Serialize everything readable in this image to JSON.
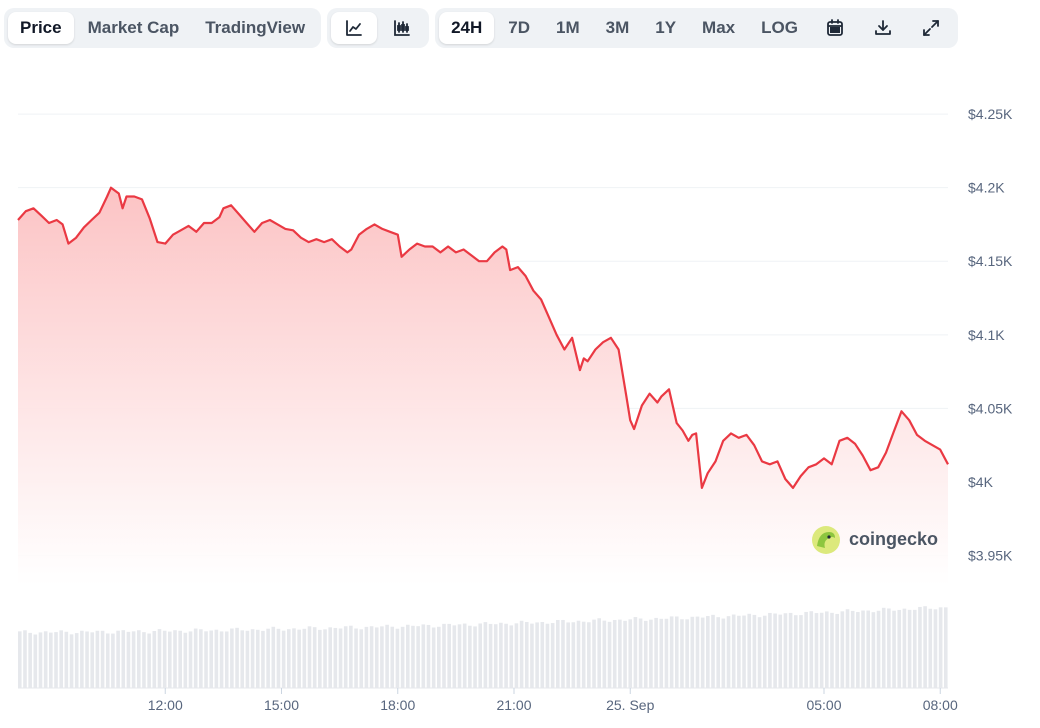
{
  "toolbar": {
    "view_tabs": [
      "Price",
      "Market Cap",
      "TradingView"
    ],
    "active_view": "Price",
    "chart_modes": [
      {
        "name": "line-chart-icon"
      },
      {
        "name": "candlestick-chart-icon"
      }
    ],
    "ranges": [
      "24H",
      "7D",
      "1M",
      "3M",
      "1Y",
      "Max",
      "LOG"
    ],
    "active_range": "24H",
    "actions": [
      {
        "name": "calendar-icon"
      },
      {
        "name": "download-icon"
      },
      {
        "name": "fullscreen-icon"
      }
    ]
  },
  "watermark": {
    "text": "coingecko"
  },
  "colors": {
    "line": "#ea3943",
    "fill_top": "#fcc3c4",
    "fill_bottom": "#ffffff",
    "volume": "#e6e8ec",
    "grid": "#eff2f5"
  },
  "chart_data": {
    "type": "area",
    "title": "",
    "xlabel": "",
    "ylabel": "",
    "ylim": [
      3930,
      4265
    ],
    "y_ticks": [
      3950,
      4000,
      4050,
      4100,
      4150,
      4200,
      4250
    ],
    "y_tick_labels": [
      "$3.95K",
      "$4K",
      "$4.05K",
      "$4.1K",
      "$4.15K",
      "$4.2K",
      "$4.25K"
    ],
    "xlim": [
      8.2,
      32.2
    ],
    "x_ticks": [
      12,
      15,
      18,
      21,
      24,
      29,
      32
    ],
    "x_tick_labels": [
      "12:00",
      "15:00",
      "18:00",
      "21:00",
      "25. Sep",
      "05:00",
      "08:00"
    ],
    "grid": true,
    "series": [
      {
        "points": [
          [
            8.2,
            4178
          ],
          [
            8.4,
            4184
          ],
          [
            8.6,
            4186
          ],
          [
            8.8,
            4181
          ],
          [
            9.0,
            4176
          ],
          [
            9.2,
            4178
          ],
          [
            9.35,
            4175
          ],
          [
            9.5,
            4162
          ],
          [
            9.7,
            4166
          ],
          [
            9.9,
            4173
          ],
          [
            10.1,
            4178
          ],
          [
            10.3,
            4183
          ],
          [
            10.5,
            4194
          ],
          [
            10.6,
            4200
          ],
          [
            10.8,
            4196
          ],
          [
            10.9,
            4186
          ],
          [
            11.0,
            4194
          ],
          [
            11.2,
            4194
          ],
          [
            11.4,
            4192
          ],
          [
            11.6,
            4179
          ],
          [
            11.8,
            4163
          ],
          [
            12.0,
            4162
          ],
          [
            12.2,
            4168
          ],
          [
            12.4,
            4171
          ],
          [
            12.6,
            4174
          ],
          [
            12.8,
            4170
          ],
          [
            13.0,
            4176
          ],
          [
            13.2,
            4176
          ],
          [
            13.4,
            4180
          ],
          [
            13.5,
            4186
          ],
          [
            13.7,
            4188
          ],
          [
            13.9,
            4182
          ],
          [
            14.1,
            4176
          ],
          [
            14.3,
            4170
          ],
          [
            14.5,
            4176
          ],
          [
            14.7,
            4178
          ],
          [
            14.9,
            4175
          ],
          [
            15.1,
            4172
          ],
          [
            15.3,
            4171
          ],
          [
            15.5,
            4166
          ],
          [
            15.7,
            4163
          ],
          [
            15.9,
            4165
          ],
          [
            16.1,
            4163
          ],
          [
            16.3,
            4165
          ],
          [
            16.5,
            4160
          ],
          [
            16.7,
            4156
          ],
          [
            16.8,
            4158
          ],
          [
            17.0,
            4168
          ],
          [
            17.2,
            4172
          ],
          [
            17.4,
            4175
          ],
          [
            17.6,
            4172
          ],
          [
            17.8,
            4170
          ],
          [
            18.0,
            4168
          ],
          [
            18.1,
            4153
          ],
          [
            18.3,
            4158
          ],
          [
            18.5,
            4162
          ],
          [
            18.7,
            4160
          ],
          [
            18.9,
            4160
          ],
          [
            19.1,
            4156
          ],
          [
            19.3,
            4160
          ],
          [
            19.5,
            4156
          ],
          [
            19.7,
            4158
          ],
          [
            19.9,
            4154
          ],
          [
            20.1,
            4150
          ],
          [
            20.3,
            4150
          ],
          [
            20.5,
            4156
          ],
          [
            20.7,
            4160
          ],
          [
            20.8,
            4158
          ],
          [
            20.9,
            4144
          ],
          [
            21.1,
            4146
          ],
          [
            21.3,
            4140
          ],
          [
            21.5,
            4130
          ],
          [
            21.7,
            4124
          ],
          [
            21.9,
            4112
          ],
          [
            22.1,
            4100
          ],
          [
            22.3,
            4090
          ],
          [
            22.5,
            4098
          ],
          [
            22.7,
            4076
          ],
          [
            22.8,
            4084
          ],
          [
            22.9,
            4082
          ],
          [
            23.1,
            4090
          ],
          [
            23.3,
            4095
          ],
          [
            23.5,
            4098
          ],
          [
            23.7,
            4090
          ],
          [
            23.9,
            4058
          ],
          [
            24.0,
            4042
          ],
          [
            24.1,
            4036
          ],
          [
            24.3,
            4052
          ],
          [
            24.5,
            4060
          ],
          [
            24.7,
            4054
          ],
          [
            24.8,
            4058
          ],
          [
            25.0,
            4063
          ],
          [
            25.2,
            4040
          ],
          [
            25.35,
            4035
          ],
          [
            25.5,
            4028
          ],
          [
            25.6,
            4032
          ],
          [
            25.7,
            4033
          ],
          [
            25.85,
            3996
          ],
          [
            26.0,
            4006
          ],
          [
            26.2,
            4014
          ],
          [
            26.4,
            4028
          ],
          [
            26.6,
            4033
          ],
          [
            26.8,
            4030
          ],
          [
            27.0,
            4032
          ],
          [
            27.2,
            4025
          ],
          [
            27.4,
            4014
          ],
          [
            27.6,
            4012
          ],
          [
            27.8,
            4014
          ],
          [
            28.0,
            4002
          ],
          [
            28.2,
            3996
          ],
          [
            28.4,
            4004
          ],
          [
            28.6,
            4010
          ],
          [
            28.8,
            4012
          ],
          [
            29.0,
            4016
          ],
          [
            29.2,
            4012
          ],
          [
            29.4,
            4028
          ],
          [
            29.6,
            4030
          ],
          [
            29.8,
            4026
          ],
          [
            30.0,
            4018
          ],
          [
            30.2,
            4008
          ],
          [
            30.4,
            4010
          ],
          [
            30.6,
            4020
          ],
          [
            30.8,
            4034
          ],
          [
            31.0,
            4048
          ],
          [
            31.2,
            4042
          ],
          [
            31.4,
            4032
          ],
          [
            31.6,
            4028
          ],
          [
            31.8,
            4025
          ],
          [
            32.0,
            4022
          ],
          [
            32.2,
            4012
          ]
        ]
      }
    ],
    "volume": {
      "type": "bar",
      "start": 0.58,
      "end": 0.84
    }
  }
}
